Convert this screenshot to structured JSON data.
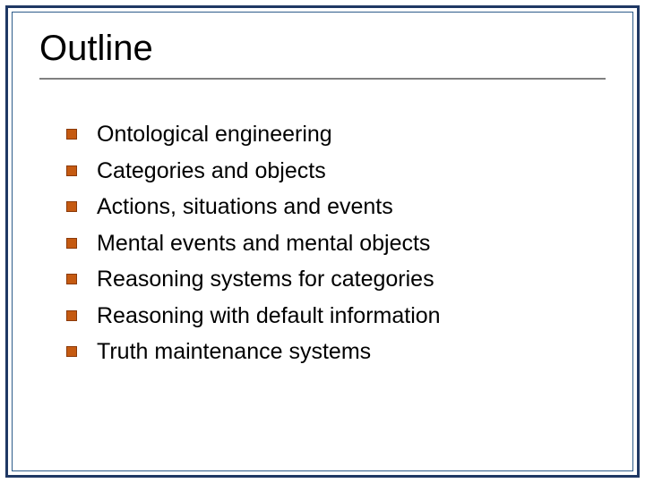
{
  "slide": {
    "title": "Outline",
    "title_color": "#000000",
    "title_fontsize": 40,
    "divider_color": "#808080",
    "outer_border_color": "#1f3864",
    "inner_border_color": "#2e5c8a",
    "background_color": "#ffffff",
    "bullet": {
      "fill_color": "#c55a11",
      "border_color": "#8b3a0a",
      "size": 12,
      "shape": "square"
    },
    "body_fontsize": 25,
    "body_color": "#000000",
    "items": [
      {
        "text": "Ontological engineering"
      },
      {
        "text": "Categories and objects"
      },
      {
        "text": "Actions, situations and events"
      },
      {
        "text": "Mental events and mental objects"
      },
      {
        "text": "Reasoning systems for categories"
      },
      {
        "text": "Reasoning with default information"
      },
      {
        "text": "Truth maintenance systems"
      }
    ]
  }
}
